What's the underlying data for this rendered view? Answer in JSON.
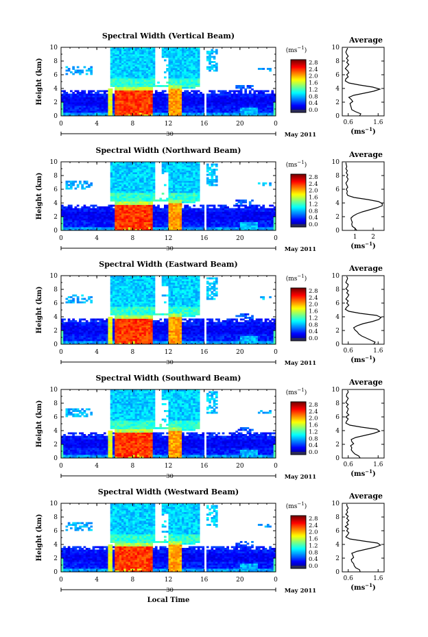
{
  "figure": {
    "xlabel": "Local Time",
    "date_label": "May 2011",
    "date_day": "30",
    "colorbar_unit_base": "(ms",
    "colorbar_unit_exp": "−1",
    "colorbar_unit_close": ")",
    "avg_unit_base": "(ms",
    "avg_unit_exp": "−1",
    "avg_unit_close": ")"
  },
  "chart_data": [
    {
      "type": "heatmap",
      "title": "Spectral Width (Vertical Beam)",
      "xlabel": "",
      "ylabel": "Height (km)",
      "xlim": [
        0,
        24
      ],
      "ylim": [
        0,
        10
      ],
      "x_ticks": [
        "0",
        "4",
        "8",
        "12",
        "16",
        "20",
        "0"
      ],
      "y_ticks": [
        "0",
        "2",
        "4",
        "6",
        "8",
        "10"
      ],
      "colorbar": {
        "unit": "(ms−1)",
        "ticks": [
          "2.8",
          "2.4",
          "2.0",
          "1.6",
          "1.2",
          "0.8",
          "0.4",
          "0.0"
        ],
        "range": [
          0,
          3.0
        ]
      },
      "average": {
        "title": "Average",
        "xlabel": "(ms−1)",
        "x_ticks": [
          "0.6",
          "1.6"
        ],
        "xlim": [
          0.4,
          1.8
        ],
        "heights": [
          0,
          0.3,
          0.6,
          0.9,
          1.2,
          1.5,
          1.8,
          2.1,
          2.4,
          2.7,
          3.0,
          3.3,
          3.6,
          3.9,
          4.2,
          4.5,
          4.8,
          5.1,
          5.4,
          5.7,
          6.0,
          6.3,
          6.6,
          6.9,
          7.2,
          7.5,
          7.8,
          8.1,
          8.4,
          8.7,
          9.0,
          9.3,
          9.6,
          9.9
        ],
        "values": [
          0.98,
          1.02,
          0.85,
          0.72,
          0.7,
          0.68,
          0.66,
          0.75,
          0.7,
          0.62,
          0.78,
          1.12,
          1.45,
          1.66,
          1.42,
          0.98,
          0.62,
          0.5,
          0.52,
          0.6,
          0.55,
          0.62,
          0.58,
          0.5,
          0.56,
          0.62,
          0.55,
          0.6,
          0.54,
          0.6,
          0.55,
          0.52,
          0.55,
          0.58
        ]
      }
    },
    {
      "type": "heatmap",
      "title": "Spectral Width (Northward Beam)",
      "xlabel": "",
      "ylabel": "Height (km)",
      "xlim": [
        0,
        24
      ],
      "ylim": [
        0,
        10
      ],
      "x_ticks": [
        "0",
        "4",
        "8",
        "12",
        "16",
        "20",
        "0"
      ],
      "y_ticks": [
        "0",
        "2",
        "4",
        "6",
        "8",
        "10"
      ],
      "colorbar": {
        "unit": "(ms−1)",
        "ticks": [
          "2.8",
          "2.4",
          "2.0",
          "1.6",
          "1.2",
          "0.8",
          "0.4",
          "0.0"
        ],
        "range": [
          0,
          3.0
        ]
      },
      "average": {
        "title": "Average",
        "xlabel": "(ms−1)",
        "x_ticks": [
          "1",
          "2"
        ],
        "xlim": [
          0.3,
          2.6
        ],
        "heights": [
          0,
          0.3,
          0.6,
          0.9,
          1.2,
          1.5,
          1.8,
          2.1,
          2.4,
          2.7,
          3.0,
          3.3,
          3.6,
          3.9,
          4.2,
          4.5,
          4.8,
          5.1,
          5.4,
          5.7,
          6.0,
          6.3,
          6.6,
          6.9,
          7.2,
          7.5,
          7.8,
          8.1,
          8.4,
          8.7,
          9.0,
          9.3,
          9.6,
          9.9
        ],
        "values": [
          1.1,
          1.0,
          0.85,
          0.82,
          0.85,
          0.8,
          0.78,
          0.9,
          1.1,
          1.4,
          1.8,
          2.2,
          2.5,
          2.5,
          2.3,
          1.7,
          0.95,
          0.6,
          0.55,
          0.58,
          0.52,
          0.6,
          0.55,
          0.5,
          0.58,
          0.62,
          0.54,
          0.6,
          0.52,
          0.58,
          0.5,
          0.55,
          0.52,
          0.5
        ]
      }
    },
    {
      "type": "heatmap",
      "title": "Spectral Width (Eastward Beam)",
      "xlabel": "",
      "ylabel": "Height (km)",
      "xlim": [
        0,
        24
      ],
      "ylim": [
        0,
        10
      ],
      "x_ticks": [
        "0",
        "4",
        "8",
        "12",
        "16",
        "20",
        "0"
      ],
      "y_ticks": [
        "0",
        "2",
        "4",
        "6",
        "8",
        "10"
      ],
      "colorbar": {
        "unit": "(ms−1)",
        "ticks": [
          "2.8",
          "2.4",
          "2.0",
          "1.6",
          "1.2",
          "0.8",
          "0.4",
          "0.0"
        ],
        "range": [
          0,
          3.0
        ]
      },
      "average": {
        "title": "Average",
        "xlabel": "(ms−1)",
        "x_ticks": [
          "0.6",
          "1.6"
        ],
        "xlim": [
          0.4,
          1.8
        ],
        "heights": [
          0,
          0.3,
          0.6,
          0.9,
          1.2,
          1.5,
          1.8,
          2.1,
          2.4,
          2.7,
          3.0,
          3.3,
          3.6,
          3.9,
          4.2,
          4.5,
          4.8,
          5.1,
          5.4,
          5.7,
          6.0,
          6.3,
          6.6,
          6.9,
          7.2,
          7.5,
          7.8,
          8.1,
          8.4,
          8.7,
          9.0,
          9.3,
          9.6,
          9.9
        ],
        "values": [
          1.45,
          1.5,
          1.35,
          1.2,
          1.05,
          0.95,
          0.9,
          0.82,
          0.78,
          0.9,
          1.1,
          1.4,
          1.62,
          1.7,
          1.55,
          1.0,
          0.62,
          0.5,
          0.55,
          0.62,
          0.55,
          0.6,
          0.52,
          0.58,
          0.62,
          0.55,
          0.6,
          0.52,
          0.58,
          0.6,
          0.52,
          0.55,
          0.58,
          0.55
        ]
      }
    },
    {
      "type": "heatmap",
      "title": "Spectral Width (Southward Beam)",
      "xlabel": "",
      "ylabel": "Height (km)",
      "xlim": [
        0,
        24
      ],
      "ylim": [
        0,
        10
      ],
      "x_ticks": [
        "0",
        "4",
        "8",
        "12",
        "16",
        "20",
        "0"
      ],
      "y_ticks": [
        "0",
        "2",
        "4",
        "6",
        "8",
        "10"
      ],
      "colorbar": {
        "unit": "(ms−1)",
        "ticks": [
          "2.8",
          "2.4",
          "2.0",
          "1.6",
          "1.2",
          "0.8",
          "0.4",
          "0.0"
        ],
        "range": [
          0,
          3.0
        ]
      },
      "average": {
        "title": "Average",
        "xlabel": "(ms−1)",
        "x_ticks": [
          "0.6",
          "1.6"
        ],
        "xlim": [
          0.4,
          1.8
        ],
        "heights": [
          0,
          0.3,
          0.6,
          0.9,
          1.2,
          1.5,
          1.8,
          2.1,
          2.4,
          2.7,
          3.0,
          3.3,
          3.6,
          3.9,
          4.2,
          4.5,
          4.8,
          5.1,
          5.4,
          5.7,
          6.0,
          6.3,
          6.6,
          6.9,
          7.2,
          7.5,
          7.8,
          8.1,
          8.4,
          8.7,
          9.0,
          9.3,
          9.6,
          9.9
        ],
        "values": [
          1.0,
          0.95,
          0.82,
          0.75,
          0.7,
          0.72,
          0.68,
          0.78,
          0.72,
          0.7,
          0.85,
          1.15,
          1.45,
          1.65,
          1.55,
          1.05,
          0.65,
          0.52,
          0.55,
          0.6,
          0.52,
          0.62,
          0.55,
          0.58,
          0.6,
          0.54,
          0.6,
          0.52,
          0.56,
          0.6,
          0.54,
          0.55,
          0.6,
          0.58
        ]
      }
    },
    {
      "type": "heatmap",
      "title": "Spectral Width (Westward Beam)",
      "xlabel": "Local Time",
      "ylabel": "Height (km)",
      "xlim": [
        0,
        24
      ],
      "ylim": [
        0,
        10
      ],
      "x_ticks": [
        "0",
        "4",
        "8",
        "12",
        "16",
        "20",
        "0"
      ],
      "y_ticks": [
        "0",
        "2",
        "4",
        "6",
        "8",
        "10"
      ],
      "colorbar": {
        "unit": "(ms−1)",
        "ticks": [
          "2.8",
          "2.4",
          "2.0",
          "1.6",
          "1.2",
          "0.8",
          "0.4",
          "0.0"
        ],
        "range": [
          0,
          3.0
        ]
      },
      "average": {
        "title": "Average",
        "xlabel": "(ms−1)",
        "x_ticks": [
          "0.6",
          "1.6"
        ],
        "xlim": [
          0.4,
          1.8
        ],
        "heights": [
          0,
          0.3,
          0.6,
          0.9,
          1.2,
          1.5,
          1.8,
          2.1,
          2.4,
          2.7,
          3.0,
          3.3,
          3.6,
          3.9,
          4.2,
          4.5,
          4.8,
          5.1,
          5.4,
          5.7,
          6.0,
          6.3,
          6.6,
          6.9,
          7.2,
          7.5,
          7.8,
          8.1,
          8.4,
          8.7,
          9.0,
          9.3,
          9.6,
          9.9
        ],
        "values": [
          1.0,
          0.98,
          0.85,
          0.8,
          0.78,
          0.72,
          0.7,
          0.78,
          0.75,
          0.72,
          0.9,
          1.2,
          1.5,
          1.68,
          1.58,
          1.1,
          0.65,
          0.52,
          0.58,
          0.62,
          0.55,
          0.6,
          0.5,
          0.6,
          0.55,
          0.62,
          0.55,
          0.6,
          0.52,
          0.58,
          0.55,
          0.6,
          0.56,
          0.55
        ]
      }
    }
  ]
}
